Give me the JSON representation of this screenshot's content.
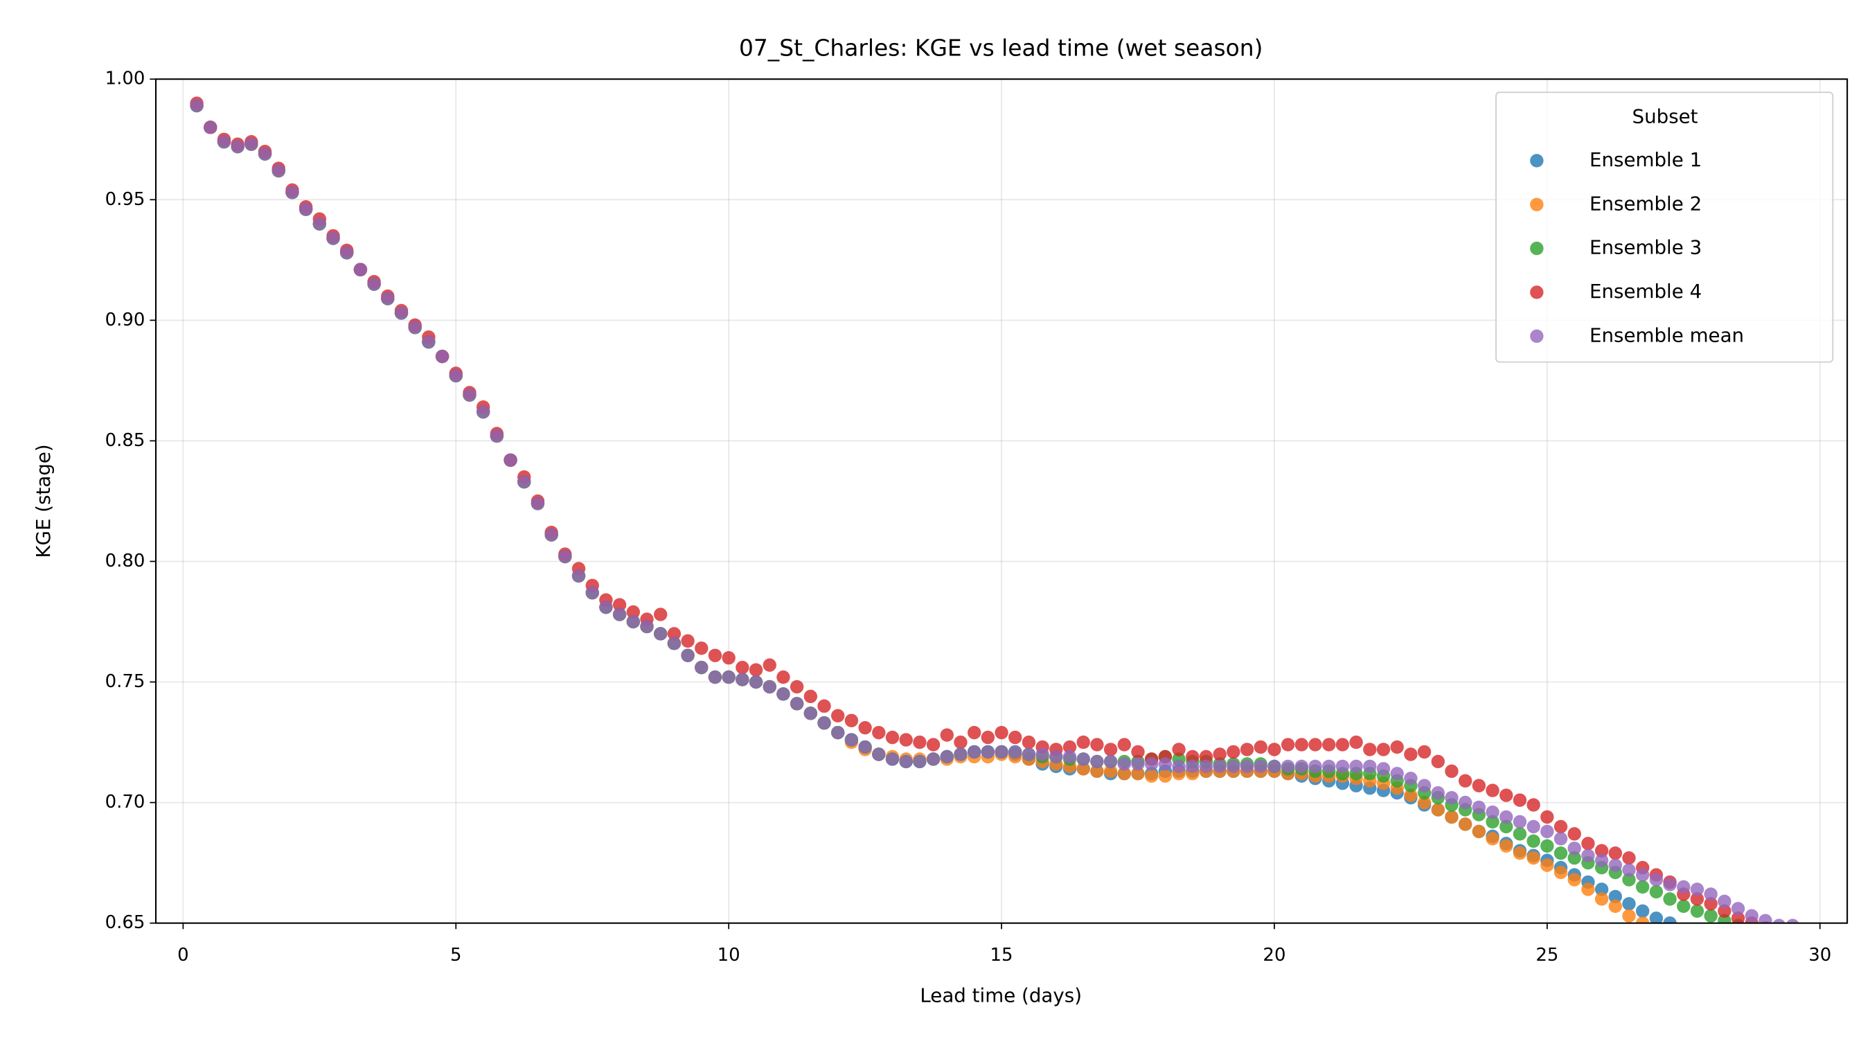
{
  "chart_data": {
    "type": "scatter",
    "title": "07_St_Charles: KGE vs lead time (wet season)",
    "x_label": "Lead time (days)",
    "y_label": "KGE (stage)",
    "legend_title": "Subset",
    "legend_position": "upper right",
    "grid": true,
    "xlim": [
      -0.5,
      30.5
    ],
    "ylim": [
      0.65,
      1.0
    ],
    "xticks": [
      0,
      5,
      10,
      15,
      20,
      25,
      30
    ],
    "yticks": [
      0.65,
      {
        "value": 0.7,
        "label": "0.70"
      },
      0.75,
      {
        "value": 0.8,
        "label": "0.80"
      },
      0.85,
      {
        "value": 0.9,
        "label": "0.90"
      },
      0.95,
      {
        "value": 1.0,
        "label": "1.00"
      }
    ],
    "x": [
      0.25,
      0.5,
      0.75,
      1,
      1.25,
      1.5,
      1.75,
      2,
      2.25,
      2.5,
      2.75,
      3,
      3.25,
      3.5,
      3.75,
      4,
      4.25,
      4.5,
      4.75,
      5,
      5.25,
      5.5,
      5.75,
      6,
      6.25,
      6.5,
      6.75,
      7,
      7.25,
      7.5,
      7.75,
      8,
      8.25,
      8.5,
      8.75,
      9,
      9.25,
      9.5,
      9.75,
      10,
      10.25,
      10.5,
      10.75,
      11,
      11.25,
      11.5,
      11.75,
      12,
      12.25,
      12.5,
      12.75,
      13,
      13.25,
      13.5,
      13.75,
      14,
      14.25,
      14.5,
      14.75,
      15,
      15.25,
      15.5,
      15.75,
      16,
      16.25,
      16.5,
      16.75,
      17,
      17.25,
      17.5,
      17.75,
      18,
      18.25,
      18.5,
      18.75,
      19,
      19.25,
      19.5,
      19.75,
      20,
      20.25,
      20.5,
      20.75,
      21,
      21.25,
      21.5,
      21.75,
      22,
      22.25,
      22.5,
      22.75,
      23,
      23.25,
      23.5,
      23.75,
      24,
      24.25,
      24.5,
      24.75,
      25,
      25.25,
      25.5,
      25.75,
      26,
      26.25,
      26.5,
      26.75,
      27,
      27.25,
      27.5,
      27.75,
      28,
      28.25,
      28.5,
      28.75,
      29,
      29.25,
      29.5
    ],
    "series": [
      {
        "name": "Ensemble 1",
        "color": "#1f77b4",
        "values": [
          0.989,
          0.98,
          0.974,
          0.972,
          0.973,
          0.969,
          0.962,
          0.953,
          0.946,
          0.94,
          0.934,
          0.928,
          0.921,
          0.915,
          0.909,
          0.903,
          0.897,
          0.891,
          0.885,
          0.877,
          0.869,
          0.862,
          0.852,
          0.842,
          0.833,
          0.824,
          0.811,
          0.802,
          0.794,
          0.787,
          0.781,
          0.778,
          0.775,
          0.773,
          0.77,
          0.766,
          0.761,
          0.756,
          0.752,
          0.752,
          0.751,
          0.75,
          0.748,
          0.745,
          0.741,
          0.737,
          0.733,
          0.729,
          0.726,
          0.723,
          0.72,
          0.718,
          0.717,
          0.717,
          0.718,
          0.719,
          0.72,
          0.721,
          0.721,
          0.721,
          0.72,
          0.718,
          0.716,
          0.715,
          0.714,
          0.714,
          0.713,
          0.712,
          0.712,
          0.712,
          0.712,
          0.713,
          0.713,
          0.713,
          0.713,
          0.713,
          0.713,
          0.713,
          0.713,
          0.713,
          0.712,
          0.711,
          0.71,
          0.709,
          0.708,
          0.707,
          0.706,
          0.705,
          0.704,
          0.702,
          0.699,
          0.697,
          0.694,
          0.691,
          0.688,
          0.686,
          0.683,
          0.68,
          0.678,
          0.676,
          0.673,
          0.67,
          0.667,
          0.664,
          0.661,
          0.658,
          0.655,
          0.652,
          0.65,
          0.647,
          null,
          null,
          null,
          null,
          null,
          null,
          null,
          null
        ]
      },
      {
        "name": "Ensemble 2",
        "color": "#ff7f0e",
        "values": [
          0.989,
          0.98,
          0.974,
          0.972,
          0.973,
          0.969,
          0.962,
          0.953,
          0.946,
          0.94,
          0.934,
          0.928,
          0.921,
          0.915,
          0.909,
          0.903,
          0.897,
          0.891,
          0.885,
          0.877,
          0.869,
          0.862,
          0.852,
          0.842,
          0.833,
          0.824,
          0.811,
          0.802,
          0.794,
          0.787,
          0.781,
          0.778,
          0.775,
          0.773,
          0.77,
          0.766,
          0.761,
          0.756,
          0.752,
          0.752,
          0.751,
          0.75,
          0.748,
          0.745,
          0.741,
          0.737,
          0.733,
          0.729,
          0.725,
          0.722,
          0.72,
          0.719,
          0.718,
          0.718,
          0.718,
          0.718,
          0.719,
          0.719,
          0.719,
          0.72,
          0.719,
          0.718,
          0.717,
          0.716,
          0.715,
          0.714,
          0.713,
          0.713,
          0.712,
          0.712,
          0.711,
          0.711,
          0.712,
          0.712,
          0.713,
          0.713,
          0.713,
          0.713,
          0.713,
          0.713,
          0.712,
          0.712,
          0.711,
          0.711,
          0.711,
          0.71,
          0.709,
          0.708,
          0.706,
          0.703,
          0.7,
          0.697,
          0.694,
          0.691,
          0.688,
          0.685,
          0.682,
          0.679,
          0.677,
          0.674,
          0.671,
          0.668,
          0.664,
          0.66,
          0.657,
          0.653,
          0.65,
          0.647,
          null,
          null,
          null,
          null,
          null,
          null,
          null,
          null,
          null,
          null
        ]
      },
      {
        "name": "Ensemble 3",
        "color": "#2ca02c",
        "values": [
          0.989,
          0.98,
          0.974,
          0.972,
          0.973,
          0.969,
          0.962,
          0.953,
          0.946,
          0.94,
          0.934,
          0.928,
          0.921,
          0.915,
          0.909,
          0.903,
          0.897,
          0.891,
          0.885,
          0.877,
          0.869,
          0.862,
          0.852,
          0.842,
          0.833,
          0.824,
          0.811,
          0.802,
          0.794,
          0.787,
          0.781,
          0.778,
          0.775,
          0.773,
          0.77,
          0.766,
          0.761,
          0.756,
          0.752,
          0.752,
          0.751,
          0.75,
          0.748,
          0.745,
          0.741,
          0.737,
          0.733,
          0.729,
          0.726,
          0.723,
          0.72,
          0.718,
          0.717,
          0.717,
          0.718,
          0.719,
          0.72,
          0.721,
          0.721,
          0.721,
          0.721,
          0.72,
          0.719,
          0.719,
          0.718,
          0.718,
          0.717,
          0.717,
          0.717,
          0.717,
          0.718,
          0.719,
          0.718,
          0.717,
          0.717,
          0.716,
          0.716,
          0.716,
          0.716,
          0.715,
          0.714,
          0.714,
          0.713,
          0.713,
          0.712,
          0.712,
          0.712,
          0.711,
          0.709,
          0.707,
          0.704,
          0.702,
          0.699,
          0.697,
          0.695,
          0.692,
          0.69,
          0.687,
          0.684,
          0.682,
          0.679,
          0.677,
          0.675,
          0.673,
          0.671,
          0.668,
          0.665,
          0.663,
          0.66,
          0.657,
          0.655,
          0.653,
          0.651,
          0.649,
          null,
          null,
          null,
          null
        ]
      },
      {
        "name": "Ensemble 4",
        "color": "#d62728",
        "values": [
          0.99,
          0.98,
          0.975,
          0.973,
          0.974,
          0.97,
          0.963,
          0.954,
          0.947,
          0.942,
          0.935,
          0.929,
          0.921,
          0.916,
          0.91,
          0.904,
          0.898,
          0.893,
          0.885,
          0.878,
          0.87,
          0.864,
          0.853,
          0.842,
          0.835,
          0.825,
          0.812,
          0.803,
          0.797,
          0.79,
          0.784,
          0.782,
          0.779,
          0.776,
          0.778,
          0.77,
          0.767,
          0.764,
          0.761,
          0.76,
          0.756,
          0.755,
          0.757,
          0.752,
          0.748,
          0.744,
          0.74,
          0.736,
          0.734,
          0.731,
          0.729,
          0.727,
          0.726,
          0.725,
          0.724,
          0.728,
          0.725,
          0.729,
          0.727,
          0.729,
          0.727,
          0.725,
          0.723,
          0.722,
          0.723,
          0.725,
          0.724,
          0.722,
          0.724,
          0.721,
          0.718,
          0.719,
          0.722,
          0.719,
          0.719,
          0.72,
          0.721,
          0.722,
          0.723,
          0.722,
          0.724,
          0.724,
          0.724,
          0.724,
          0.724,
          0.725,
          0.722,
          0.722,
          0.723,
          0.72,
          0.721,
          0.717,
          0.713,
          0.709,
          0.707,
          0.705,
          0.703,
          0.701,
          0.699,
          0.694,
          0.69,
          0.687,
          0.683,
          0.68,
          0.679,
          0.677,
          0.673,
          0.67,
          0.667,
          0.662,
          0.66,
          0.658,
          0.655,
          0.652,
          0.65,
          0.648,
          null,
          null
        ]
      },
      {
        "name": "Ensemble mean",
        "color": "#9467bd",
        "values": [
          0.989,
          0.98,
          0.974,
          0.972,
          0.973,
          0.969,
          0.962,
          0.953,
          0.946,
          0.94,
          0.934,
          0.928,
          0.921,
          0.915,
          0.909,
          0.903,
          0.897,
          0.891,
          0.885,
          0.877,
          0.869,
          0.862,
          0.852,
          0.842,
          0.833,
          0.824,
          0.811,
          0.802,
          0.794,
          0.787,
          0.781,
          0.778,
          0.775,
          0.773,
          0.77,
          0.766,
          0.761,
          0.756,
          0.752,
          0.752,
          0.751,
          0.75,
          0.748,
          0.745,
          0.741,
          0.737,
          0.733,
          0.729,
          0.726,
          0.723,
          0.72,
          0.718,
          0.717,
          0.717,
          0.718,
          0.719,
          0.72,
          0.721,
          0.721,
          0.721,
          0.721,
          0.72,
          0.72,
          0.719,
          0.719,
          0.718,
          0.717,
          0.717,
          0.716,
          0.716,
          0.716,
          0.716,
          0.715,
          0.715,
          0.715,
          0.715,
          0.715,
          0.715,
          0.715,
          0.715,
          0.715,
          0.715,
          0.715,
          0.715,
          0.715,
          0.715,
          0.715,
          0.714,
          0.712,
          0.71,
          0.707,
          0.704,
          0.702,
          0.7,
          0.698,
          0.696,
          0.694,
          0.692,
          0.69,
          0.688,
          0.685,
          0.681,
          0.678,
          0.676,
          0.674,
          0.672,
          0.67,
          0.668,
          0.666,
          0.665,
          0.664,
          0.662,
          0.659,
          0.656,
          0.653,
          0.651,
          0.649,
          0.649
        ]
      }
    ]
  }
}
